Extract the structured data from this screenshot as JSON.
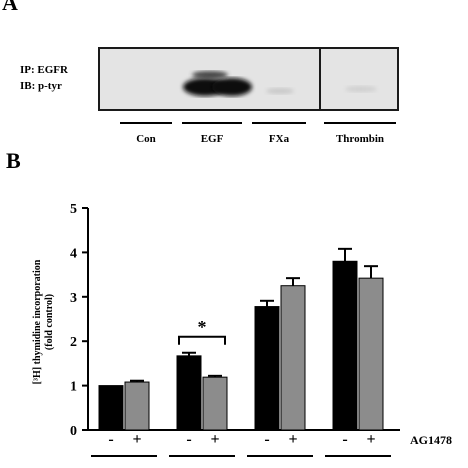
{
  "panel_a": {
    "letter": "A",
    "labels": [
      "IP: EGFR",
      "IB: p-tyr"
    ],
    "lanes": [
      "Con",
      "EGF",
      "FXa",
      "Thrombin"
    ]
  },
  "panel_b": {
    "letter": "B",
    "significance_marker": "*",
    "treatment_label": "AG1478",
    "treatment_signs": [
      "-",
      "+",
      "-",
      "+",
      "-",
      "+",
      "-",
      "+"
    ]
  },
  "chart_data": {
    "type": "bar",
    "ylabel": "[3H] thymidine incorporation (fold control)",
    "ylabel_lines": [
      "[³H] thymidine incorporation",
      "(fold control)"
    ],
    "ylim": [
      0,
      5
    ],
    "yticks": [
      "0",
      "1",
      "2",
      "3",
      "4",
      "5"
    ],
    "groups": 4,
    "bars": [
      {
        "group": 1,
        "treatment": "-",
        "value": 1.0,
        "error": 0.0,
        "color": "#000000"
      },
      {
        "group": 1,
        "treatment": "+",
        "value": 1.08,
        "error": 0.03,
        "color": "#8c8c8c"
      },
      {
        "group": 2,
        "treatment": "-",
        "value": 1.67,
        "error": 0.07,
        "color": "#000000"
      },
      {
        "group": 2,
        "treatment": "+",
        "value": 1.19,
        "error": 0.03,
        "color": "#8c8c8c"
      },
      {
        "group": 3,
        "treatment": "-",
        "value": 2.78,
        "error": 0.13,
        "color": "#000000"
      },
      {
        "group": 3,
        "treatment": "+",
        "value": 3.25,
        "error": 0.17,
        "color": "#8c8c8c"
      },
      {
        "group": 4,
        "treatment": "-",
        "value": 3.8,
        "error": 0.28,
        "color": "#000000"
      },
      {
        "group": 4,
        "treatment": "+",
        "value": 3.42,
        "error": 0.27,
        "color": "#8c8c8c"
      }
    ],
    "grid": false,
    "legend": "none"
  }
}
